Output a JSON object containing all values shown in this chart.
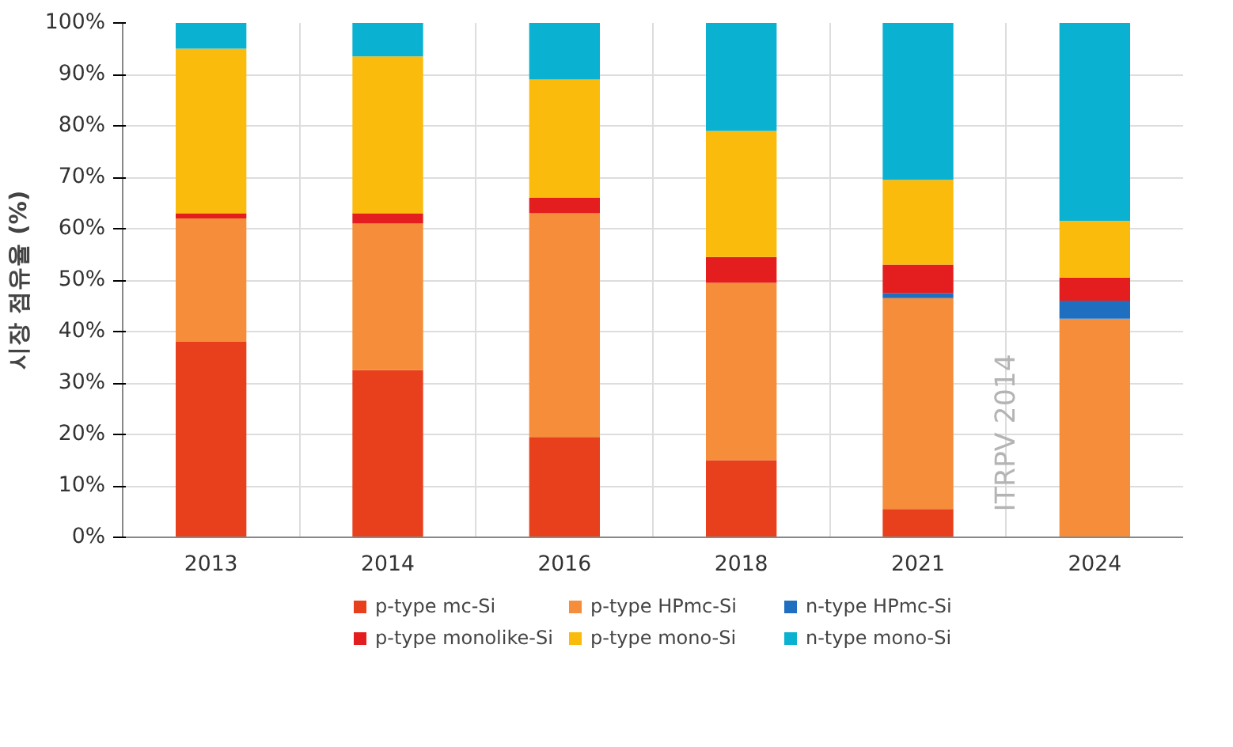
{
  "chart_data": {
    "type": "bar",
    "stacked": true,
    "ylabel": "시장 점유율 (%)",
    "categories": [
      "2013",
      "2014",
      "2016",
      "2018",
      "2021",
      "2024"
    ],
    "series": [
      {
        "name": "p-type mc-Si",
        "color": "#e8401c",
        "values": [
          38,
          32.5,
          19.5,
          15,
          5.5,
          0
        ]
      },
      {
        "name": "p-type HPmc-Si",
        "color": "#f58d3a",
        "values": [
          24,
          28.5,
          43.5,
          34.5,
          41,
          42.5
        ]
      },
      {
        "name": "n-type HPmc-Si",
        "color": "#1f6fc0",
        "values": [
          0,
          0,
          0,
          0,
          1,
          3.5
        ]
      },
      {
        "name": "p-type monolike-Si",
        "color": "#e41e1e",
        "values": [
          1,
          2,
          3,
          5,
          5.5,
          4.5
        ]
      },
      {
        "name": "p-type mono-Si",
        "color": "#fbbb0c",
        "values": [
          32,
          30.5,
          23,
          24.5,
          16.5,
          11
        ]
      },
      {
        "name": "n-type mono-Si",
        "color": "#0ab1d0",
        "values": [
          5,
          6.5,
          11,
          21,
          30.5,
          38.5
        ]
      }
    ],
    "ylim": [
      0,
      100
    ],
    "yticks": [
      {
        "value": 0,
        "label": "0%"
      },
      {
        "value": 10,
        "label": "10%"
      },
      {
        "value": 20,
        "label": "20%"
      },
      {
        "value": 30,
        "label": "30%"
      },
      {
        "value": 40,
        "label": "40%"
      },
      {
        "value": 50,
        "label": "50%"
      },
      {
        "value": 60,
        "label": "60%"
      },
      {
        "value": 70,
        "label": "70%"
      },
      {
        "value": 80,
        "label": "80%"
      },
      {
        "value": 90,
        "label": "90%"
      },
      {
        "value": 100,
        "label": "100%"
      }
    ],
    "grid": true,
    "legend": "bottom",
    "annotations": [
      "ITRPV 2014"
    ]
  }
}
